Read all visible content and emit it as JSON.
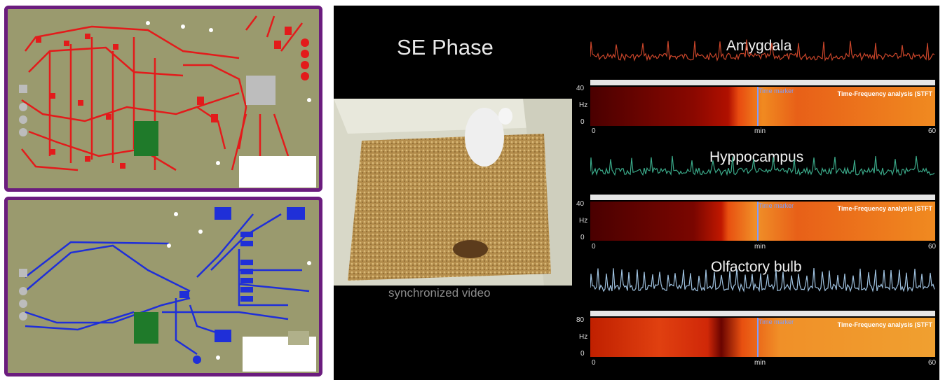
{
  "video": {
    "phase_title": "SE Phase",
    "caption": "synchronized video"
  },
  "regions": [
    {
      "name": "Amygdala",
      "trace_color": "#c9452a",
      "y_max": "40",
      "y_zero": "0",
      "unit": "Hz",
      "x_start": "0",
      "x_unit": "min",
      "x_end": "60",
      "stft_label": "Time-Frequency analysis (STFT",
      "marker_label": "Time marker"
    },
    {
      "name": "Hyppocampus",
      "trace_color": "#3aa888",
      "y_max": "40",
      "y_zero": "0",
      "unit": "Hz",
      "x_start": "0",
      "x_unit": "min",
      "x_end": "60",
      "stft_label": "Time-Frequency analysis (STFT",
      "marker_label": "Time marker"
    },
    {
      "name": "Olfactory bulb",
      "trace_color": "#9fc2e0",
      "y_max": "80",
      "y_zero": "0",
      "unit": "Hz",
      "x_start": "0",
      "x_unit": "min",
      "x_end": "60",
      "stft_label": "Time-Frequency analysis (STFT",
      "marker_label": "Time marker"
    }
  ],
  "colors": {
    "pcb_border": "#6b1c7e",
    "pcb_board": "#9a9a6e",
    "top_layer_copper": "#e31b1b",
    "bottom_layer_copper": "#1f2fd8",
    "component_green": "#1f7a2a"
  }
}
